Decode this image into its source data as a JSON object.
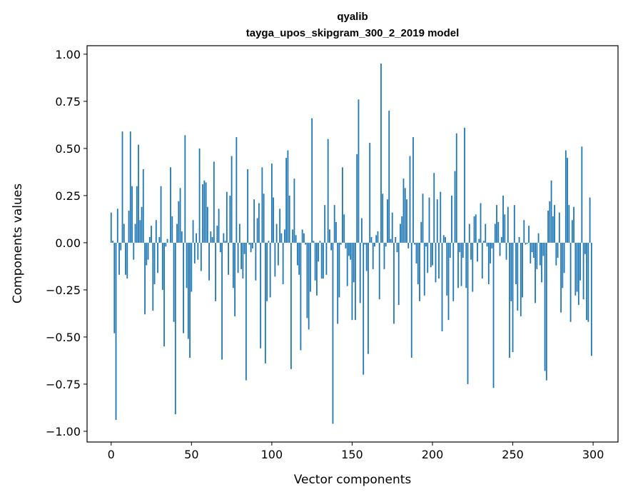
{
  "chart_data": {
    "type": "bar",
    "title": "qyalib",
    "subtitle": "tayga_upos_skipgram_300_2_2019 model",
    "xlabel": "Vector components",
    "ylabel": "Components values",
    "xlim": [
      -15,
      315.5
    ],
    "ylim": [
      -1.057,
      1.045
    ],
    "xticks": [
      "0",
      "50",
      "100",
      "150",
      "200",
      "250",
      "300"
    ],
    "yticks": [
      "−1.00",
      "−0.75",
      "−0.50",
      "−0.25",
      "0.00",
      "0.25",
      "0.50",
      "0.75",
      "1.00"
    ],
    "grid": false,
    "bar_color": "#1f77b4",
    "values": [
      0.16,
      0.01,
      -0.48,
      -0.94,
      0.18,
      -0.17,
      -0.04,
      0.59,
      0.1,
      -0.17,
      -0.19,
      0.17,
      0.59,
      0.3,
      -0.09,
      0.1,
      0.3,
      0.52,
      0.12,
      0.19,
      0.39,
      -0.38,
      -0.12,
      -0.09,
      0.03,
      0.09,
      -0.36,
      -0.22,
      0.12,
      -0.16,
      0.03,
      0.3,
      -0.25,
      -0.55,
      -0.02,
      0.02,
      0.0,
      0.4,
      0.14,
      -0.42,
      -0.91,
      0.1,
      0.22,
      0.29,
      0.06,
      -0.48,
      0.57,
      -0.24,
      -0.51,
      -0.61,
      -0.26,
      0.12,
      -0.11,
      0.05,
      -0.09,
      0.5,
      -0.15,
      0.31,
      0.33,
      0.32,
      0.19,
      -0.2,
      0.06,
      0.03,
      0.43,
      -0.31,
      0.09,
      0.18,
      -0.05,
      -0.62,
      0.05,
      0.01,
      0.27,
      -0.17,
      0.25,
      0.46,
      -0.24,
      -0.39,
      0.56,
      -0.16,
      0.1,
      -0.14,
      -0.19,
      -0.06,
      -0.73,
      0.39,
      -0.01,
      -0.05,
      -0.03,
      0.23,
      -0.2,
      0.13,
      0.21,
      -0.56,
      0.4,
      0.26,
      -0.64,
      -0.31,
      0.01,
      -0.29,
      0.42,
      0.24,
      -0.18,
      0.1,
      -0.12,
      0.18,
      0.05,
      -0.22,
      0.07,
      0.45,
      0.49,
      0.25,
      -0.67,
      0.07,
      0.34,
      0.04,
      -0.12,
      -0.17,
      -0.57,
      0.07,
      0.05,
      -0.01,
      -0.4,
      -0.46,
      -0.26,
      0.66,
      0.01,
      -0.2,
      -0.28,
      -0.1,
      0.01,
      -0.19,
      -0.19,
      0.2,
      -0.17,
      0.55,
      0.07,
      -0.04,
      -0.96,
      0.2,
      0.11,
      -0.43,
      -0.29,
      -0.01,
      0.4,
      0.15,
      -0.03,
      -0.23,
      -0.07,
      -0.09,
      -0.41,
      -0.21,
      -0.41,
      0.47,
      0.76,
      -0.32,
      0.13,
      -0.7,
      -0.01,
      -0.15,
      -0.59,
      0.53,
      0.03,
      -0.14,
      -0.02,
      0.04,
      0.06,
      -0.3,
      0.95,
      0.26,
      -0.14,
      -0.02,
      0.23,
      0.7,
      0.02,
      0.16,
      -0.43,
      0.03,
      -0.05,
      -0.33,
      0.1,
      0.14,
      0.34,
      0.29,
      0.23,
      -0.03,
      0.46,
      -0.61,
      0.56,
      -0.01,
      -0.11,
      -0.22,
      -0.31,
      0.11,
      0.26,
      -0.28,
      -0.02,
      -0.16,
      0.24,
      -0.13,
      -0.12,
      0.37,
      -0.21,
      0.23,
      -0.19,
      0.27,
      -0.47,
      0.04,
      0.03,
      -0.28,
      -0.41,
      -0.08,
      0.25,
      -0.31,
      0.38,
      0.58,
      -0.24,
      -0.05,
      -0.23,
      -0.08,
      0.61,
      -0.24,
      -0.75,
      0.1,
      -0.09,
      -0.26,
      0.14,
      0.15,
      -0.1,
      0.02,
      0.21,
      -0.19,
      0.01,
      0.1,
      -0.02,
      -0.22,
      -0.11,
      -0.03,
      -0.77,
      0.1,
      0.2,
      0.11,
      -0.07,
      0.03,
      0.25,
      0.15,
      -0.09,
      0.19,
      -0.61,
      -0.31,
      -0.58,
      0.2,
      -0.22,
      -0.36,
      0.03,
      -0.39,
      -0.29,
      0.12,
      -0.01,
      -0.005,
      0.09,
      -0.11,
      -0.05,
      -0.08,
      -0.32,
      -0.14,
      0.05,
      -0.12,
      -0.21,
      -0.07,
      -0.68,
      -0.73,
      0.17,
      0.22,
      0.33,
      0.14,
      0.2,
      -0.12,
      -0.08,
      0.16,
      -0.37,
      -0.24,
      -0.16,
      0.49,
      0.45,
      0.2,
      -0.42,
      0.12,
      0.19,
      -0.28,
      -0.26,
      -0.33,
      -0.2,
      0.51,
      -0.3,
      -0.06,
      -0.41,
      -0.42,
      0.24,
      -0.6
    ]
  }
}
